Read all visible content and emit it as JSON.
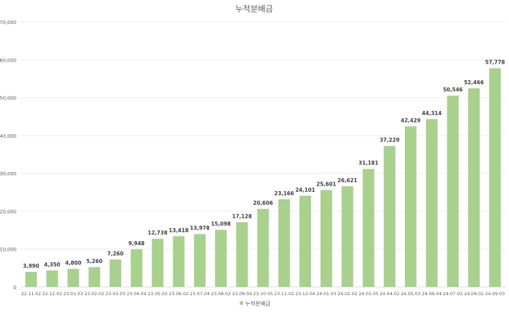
{
  "chart_data": {
    "type": "bar",
    "title": "누적분배금",
    "xlabel": "",
    "ylabel": "",
    "ylim": [
      0,
      70000
    ],
    "yticks": [
      0,
      10000,
      20000,
      30000,
      40000,
      50000,
      60000,
      70000
    ],
    "ytick_labels": [
      "0",
      "10,000",
      "20,000",
      "30,000",
      "40,000",
      "50,000",
      "60,000",
      "70,000"
    ],
    "grid": true,
    "legend": {
      "position": "bottom",
      "entries": [
        "누적분배금"
      ]
    },
    "color": "#a9d18e",
    "categories": [
      "22.11.02",
      "22.12.02",
      "23.01.03",
      "23.02.02",
      "23.03.03",
      "23.04.04",
      "23.05.03",
      "23.06.02",
      "23.07.04",
      "23.08.02",
      "23.09.04",
      "23.10.05",
      "23.11.02",
      "23.12.04",
      "24.01.03",
      "24.02.02",
      "24.03.05",
      "24.04.02",
      "24.05.03",
      "24.06.04",
      "24.07.02",
      "24.08.02",
      "24.09.03"
    ],
    "values": [
      3990,
      4350,
      4800,
      5260,
      7260,
      9948,
      12738,
      13418,
      13978,
      15098,
      17128,
      20606,
      23166,
      24101,
      25601,
      26621,
      31181,
      37229,
      42429,
      44314,
      50546,
      52466,
      57778
    ],
    "data_labels": [
      "3,990",
      "4,350",
      "4,800",
      "5,260",
      "7,260",
      "9,948",
      "12,738",
      "13,418",
      "13,978",
      "15,098",
      "17,128",
      "20,606",
      "23,166",
      "24,101",
      "25,601",
      "26,621",
      "31,181",
      "37,229",
      "42,429",
      "44,314",
      "50,546",
      "52,466",
      "57,778"
    ]
  }
}
